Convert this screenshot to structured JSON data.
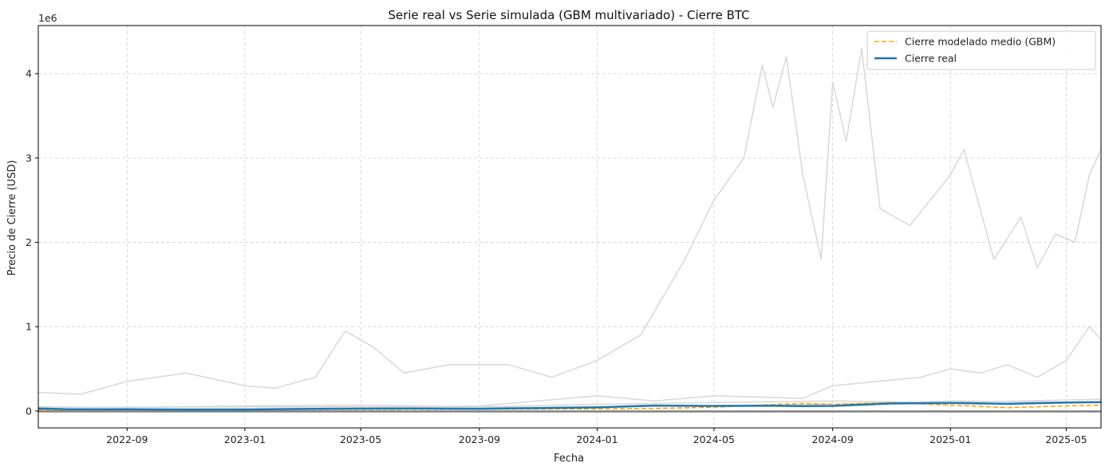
{
  "chart_data": {
    "type": "line",
    "title": "Serie real vs Serie simulada (GBM multivariado) - Cierre BTC",
    "xlabel": "Fecha",
    "ylabel": "Precio de Cierre (USD)",
    "y_offset_label": "1e6",
    "grid": true,
    "legend_position": "top-right",
    "xlim": [
      "2022-06-01",
      "2025-06-06"
    ],
    "ylim": [
      -0.2,
      4.57
    ],
    "y_unit_multiplier": 1000000,
    "x_ticks": [
      "2022-09",
      "2023-01",
      "2023-05",
      "2023-09",
      "2024-01",
      "2024-05",
      "2024-09",
      "2025-01",
      "2025-05"
    ],
    "y_ticks": [
      0,
      1,
      2,
      3,
      4
    ],
    "colors": {
      "real": "#1f77b4",
      "gbm_mean": "#ffa500",
      "simulations": "#d8d8d8",
      "baseline": "#808080",
      "grid": "#d0d0d0"
    },
    "series": [
      {
        "name": "Cierre modelado medio (GBM)",
        "style": "dashed",
        "points": [
          [
            "2022-06-01",
            0.012
          ],
          [
            "2022-09-01",
            0.015
          ],
          [
            "2023-01-01",
            0.017
          ],
          [
            "2023-05-01",
            0.02
          ],
          [
            "2023-09-01",
            0.022
          ],
          [
            "2024-01-01",
            0.026
          ],
          [
            "2024-03-01",
            0.03
          ],
          [
            "2024-05-01",
            0.045
          ],
          [
            "2024-06-15",
            0.07
          ],
          [
            "2024-08-01",
            0.09
          ],
          [
            "2024-09-01",
            0.08
          ],
          [
            "2024-11-01",
            0.1
          ],
          [
            "2025-01-01",
            0.07
          ],
          [
            "2025-03-01",
            0.04
          ],
          [
            "2025-05-01",
            0.06
          ],
          [
            "2025-06-06",
            0.07
          ]
        ]
      },
      {
        "name": "Cierre real",
        "style": "solid",
        "points": [
          [
            "2022-06-01",
            0.03
          ],
          [
            "2022-07-01",
            0.02
          ],
          [
            "2022-09-01",
            0.02
          ],
          [
            "2022-11-01",
            0.017
          ],
          [
            "2023-01-01",
            0.017
          ],
          [
            "2023-03-01",
            0.023
          ],
          [
            "2023-05-01",
            0.028
          ],
          [
            "2023-07-01",
            0.03
          ],
          [
            "2023-09-01",
            0.026
          ],
          [
            "2023-11-01",
            0.035
          ],
          [
            "2024-01-01",
            0.043
          ],
          [
            "2024-03-01",
            0.065
          ],
          [
            "2024-05-01",
            0.06
          ],
          [
            "2024-07-01",
            0.063
          ],
          [
            "2024-08-01",
            0.058
          ],
          [
            "2024-09-01",
            0.06
          ],
          [
            "2024-11-01",
            0.09
          ],
          [
            "2025-01-01",
            0.095
          ],
          [
            "2025-03-01",
            0.085
          ],
          [
            "2025-05-01",
            0.1
          ],
          [
            "2025-06-06",
            0.105
          ]
        ]
      },
      {
        "role": "simulation",
        "points": [
          [
            "2022-06-01",
            0.22
          ],
          [
            "2022-07-15",
            0.2
          ],
          [
            "2022-09-01",
            0.35
          ],
          [
            "2022-11-01",
            0.45
          ],
          [
            "2023-01-01",
            0.3
          ],
          [
            "2023-02-01",
            0.27
          ],
          [
            "2023-03-15",
            0.4
          ],
          [
            "2023-04-15",
            0.95
          ],
          [
            "2023-05-15",
            0.75
          ],
          [
            "2023-06-15",
            0.45
          ],
          [
            "2023-08-01",
            0.55
          ],
          [
            "2023-10-01",
            0.55
          ],
          [
            "2023-11-15",
            0.4
          ],
          [
            "2024-01-01",
            0.6
          ],
          [
            "2024-02-15",
            0.9
          ],
          [
            "2024-04-01",
            1.8
          ],
          [
            "2024-05-01",
            2.5
          ],
          [
            "2024-06-01",
            3.0
          ],
          [
            "2024-06-20",
            4.1
          ],
          [
            "2024-07-01",
            3.6
          ],
          [
            "2024-07-15",
            4.2
          ],
          [
            "2024-08-01",
            2.8
          ],
          [
            "2024-08-20",
            1.8
          ],
          [
            "2024-09-01",
            3.9
          ],
          [
            "2024-09-15",
            3.2
          ],
          [
            "2024-10-01",
            4.3
          ],
          [
            "2024-10-20",
            2.4
          ],
          [
            "2024-11-20",
            2.2
          ],
          [
            "2025-01-01",
            2.8
          ],
          [
            "2025-01-15",
            3.1
          ],
          [
            "2025-02-15",
            1.8
          ],
          [
            "2025-03-15",
            2.3
          ],
          [
            "2025-04-01",
            1.7
          ],
          [
            "2025-04-20",
            2.1
          ],
          [
            "2025-05-10",
            2.0
          ],
          [
            "2025-05-25",
            2.8
          ],
          [
            "2025-06-06",
            3.1
          ]
        ]
      },
      {
        "role": "simulation",
        "points": [
          [
            "2022-06-01",
            0.04
          ],
          [
            "2023-01-01",
            0.05
          ],
          [
            "2023-06-01",
            0.05
          ],
          [
            "2023-09-01",
            0.06
          ],
          [
            "2024-01-01",
            0.18
          ],
          [
            "2024-03-01",
            0.12
          ],
          [
            "2024-05-01",
            0.18
          ],
          [
            "2024-08-01",
            0.15
          ],
          [
            "2024-09-01",
            0.3
          ],
          [
            "2024-12-01",
            0.4
          ],
          [
            "2025-01-01",
            0.5
          ],
          [
            "2025-02-01",
            0.45
          ],
          [
            "2025-03-01",
            0.55
          ],
          [
            "2025-04-01",
            0.4
          ],
          [
            "2025-05-01",
            0.6
          ],
          [
            "2025-05-25",
            1.0
          ],
          [
            "2025-06-06",
            0.85
          ]
        ]
      },
      {
        "role": "simulation",
        "points": [
          [
            "2022-06-01",
            0.05
          ],
          [
            "2022-09-01",
            0.04
          ],
          [
            "2023-01-01",
            0.06
          ],
          [
            "2023-05-01",
            0.07
          ],
          [
            "2023-09-01",
            0.05
          ],
          [
            "2024-01-01",
            0.08
          ],
          [
            "2024-05-01",
            0.1
          ],
          [
            "2024-09-01",
            0.12
          ],
          [
            "2025-01-01",
            0.1
          ],
          [
            "2025-06-06",
            0.14
          ]
        ]
      },
      {
        "role": "simulation",
        "points": [
          [
            "2022-06-01",
            0.02
          ],
          [
            "2023-01-01",
            0.03
          ],
          [
            "2023-09-01",
            0.04
          ],
          [
            "2024-01-01",
            0.05
          ],
          [
            "2024-09-01",
            0.08
          ],
          [
            "2025-01-01",
            0.12
          ],
          [
            "2025-06-06",
            0.1
          ]
        ]
      }
    ]
  }
}
